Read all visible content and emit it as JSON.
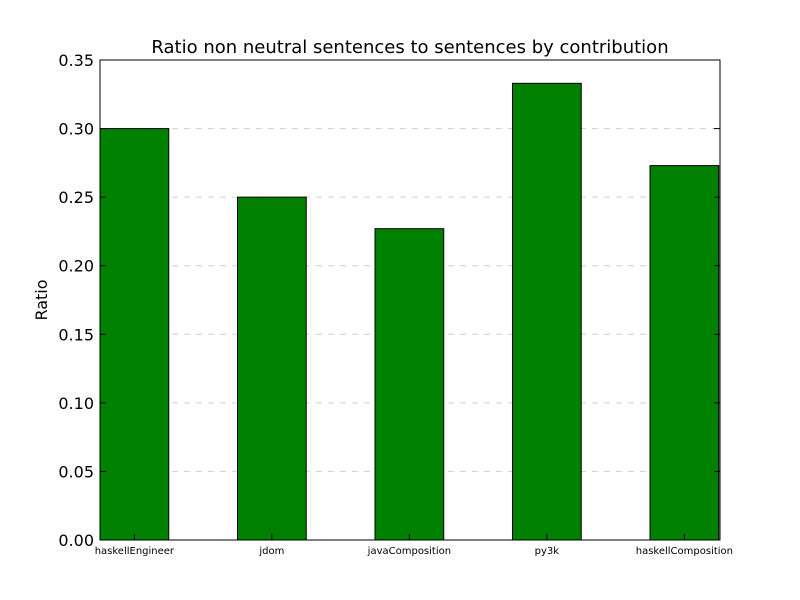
{
  "chart_data": {
    "type": "bar",
    "title": "Ratio non neutral sentences to sentences by contribution",
    "xlabel": "",
    "ylabel": "Ratio",
    "categories": [
      "haskellEngineer",
      "jdom",
      "javaComposition",
      "py3k",
      "haskellComposition"
    ],
    "values": [
      0.3,
      0.25,
      0.227,
      0.333,
      0.273
    ],
    "ylim": [
      0,
      0.35
    ],
    "yticks": [
      "0.00",
      "0.05",
      "0.10",
      "0.15",
      "0.20",
      "0.25",
      "0.30",
      "0.35"
    ],
    "grid": "horizontal dashed",
    "bar_color": "#008000",
    "edge_color": "#000000"
  }
}
